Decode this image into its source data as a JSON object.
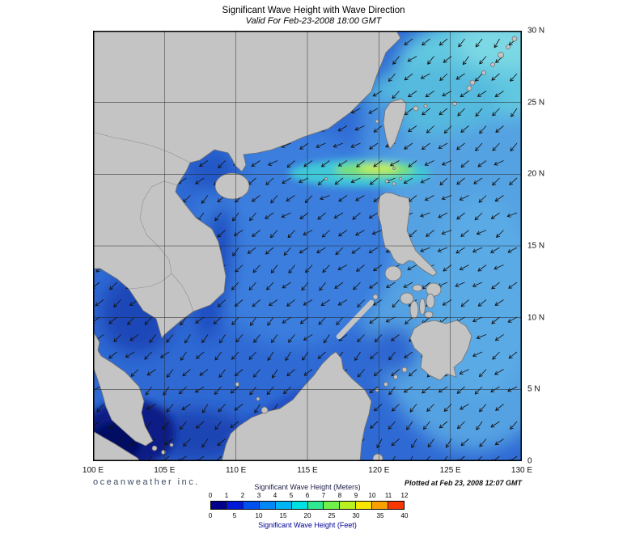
{
  "header": {
    "title": "Significant Wave Height with Wave Direction",
    "subtitle": "Valid For Feb-23-2008 18:00 GMT"
  },
  "map": {
    "x_ticks": [
      "100 E",
      "105 E",
      "110 E",
      "115 E",
      "120 E",
      "125 E",
      "130 E"
    ],
    "y_ticks": [
      "30 N",
      "25 N",
      "20 N",
      "15 N",
      "10 N",
      "5 N",
      "0"
    ],
    "ocean_base_color": "#2f6ad4",
    "land_color": "#c4c4c4"
  },
  "legend": {
    "meters_label": "Significant Wave Height (Meters)",
    "feet_label": "Significant Wave Height (Feet)",
    "meters_ticks": [
      "0",
      "1",
      "2",
      "3",
      "4",
      "5",
      "6",
      "7",
      "8",
      "9",
      "10",
      "11",
      "12"
    ],
    "feet_ticks": [
      "0",
      "5",
      "10",
      "15",
      "20",
      "25",
      "30",
      "35",
      "40"
    ],
    "colors": [
      "#00008c",
      "#0018d8",
      "#0050f0",
      "#0088f8",
      "#00b4f8",
      "#00e0e0",
      "#30e890",
      "#70f048",
      "#b8f020",
      "#f8e800",
      "#f8a000",
      "#f83800"
    ]
  },
  "footer": {
    "branding": "oceanweather inc.",
    "plotted": "Plotted at Feb 23, 2008 12:07 GMT"
  }
}
